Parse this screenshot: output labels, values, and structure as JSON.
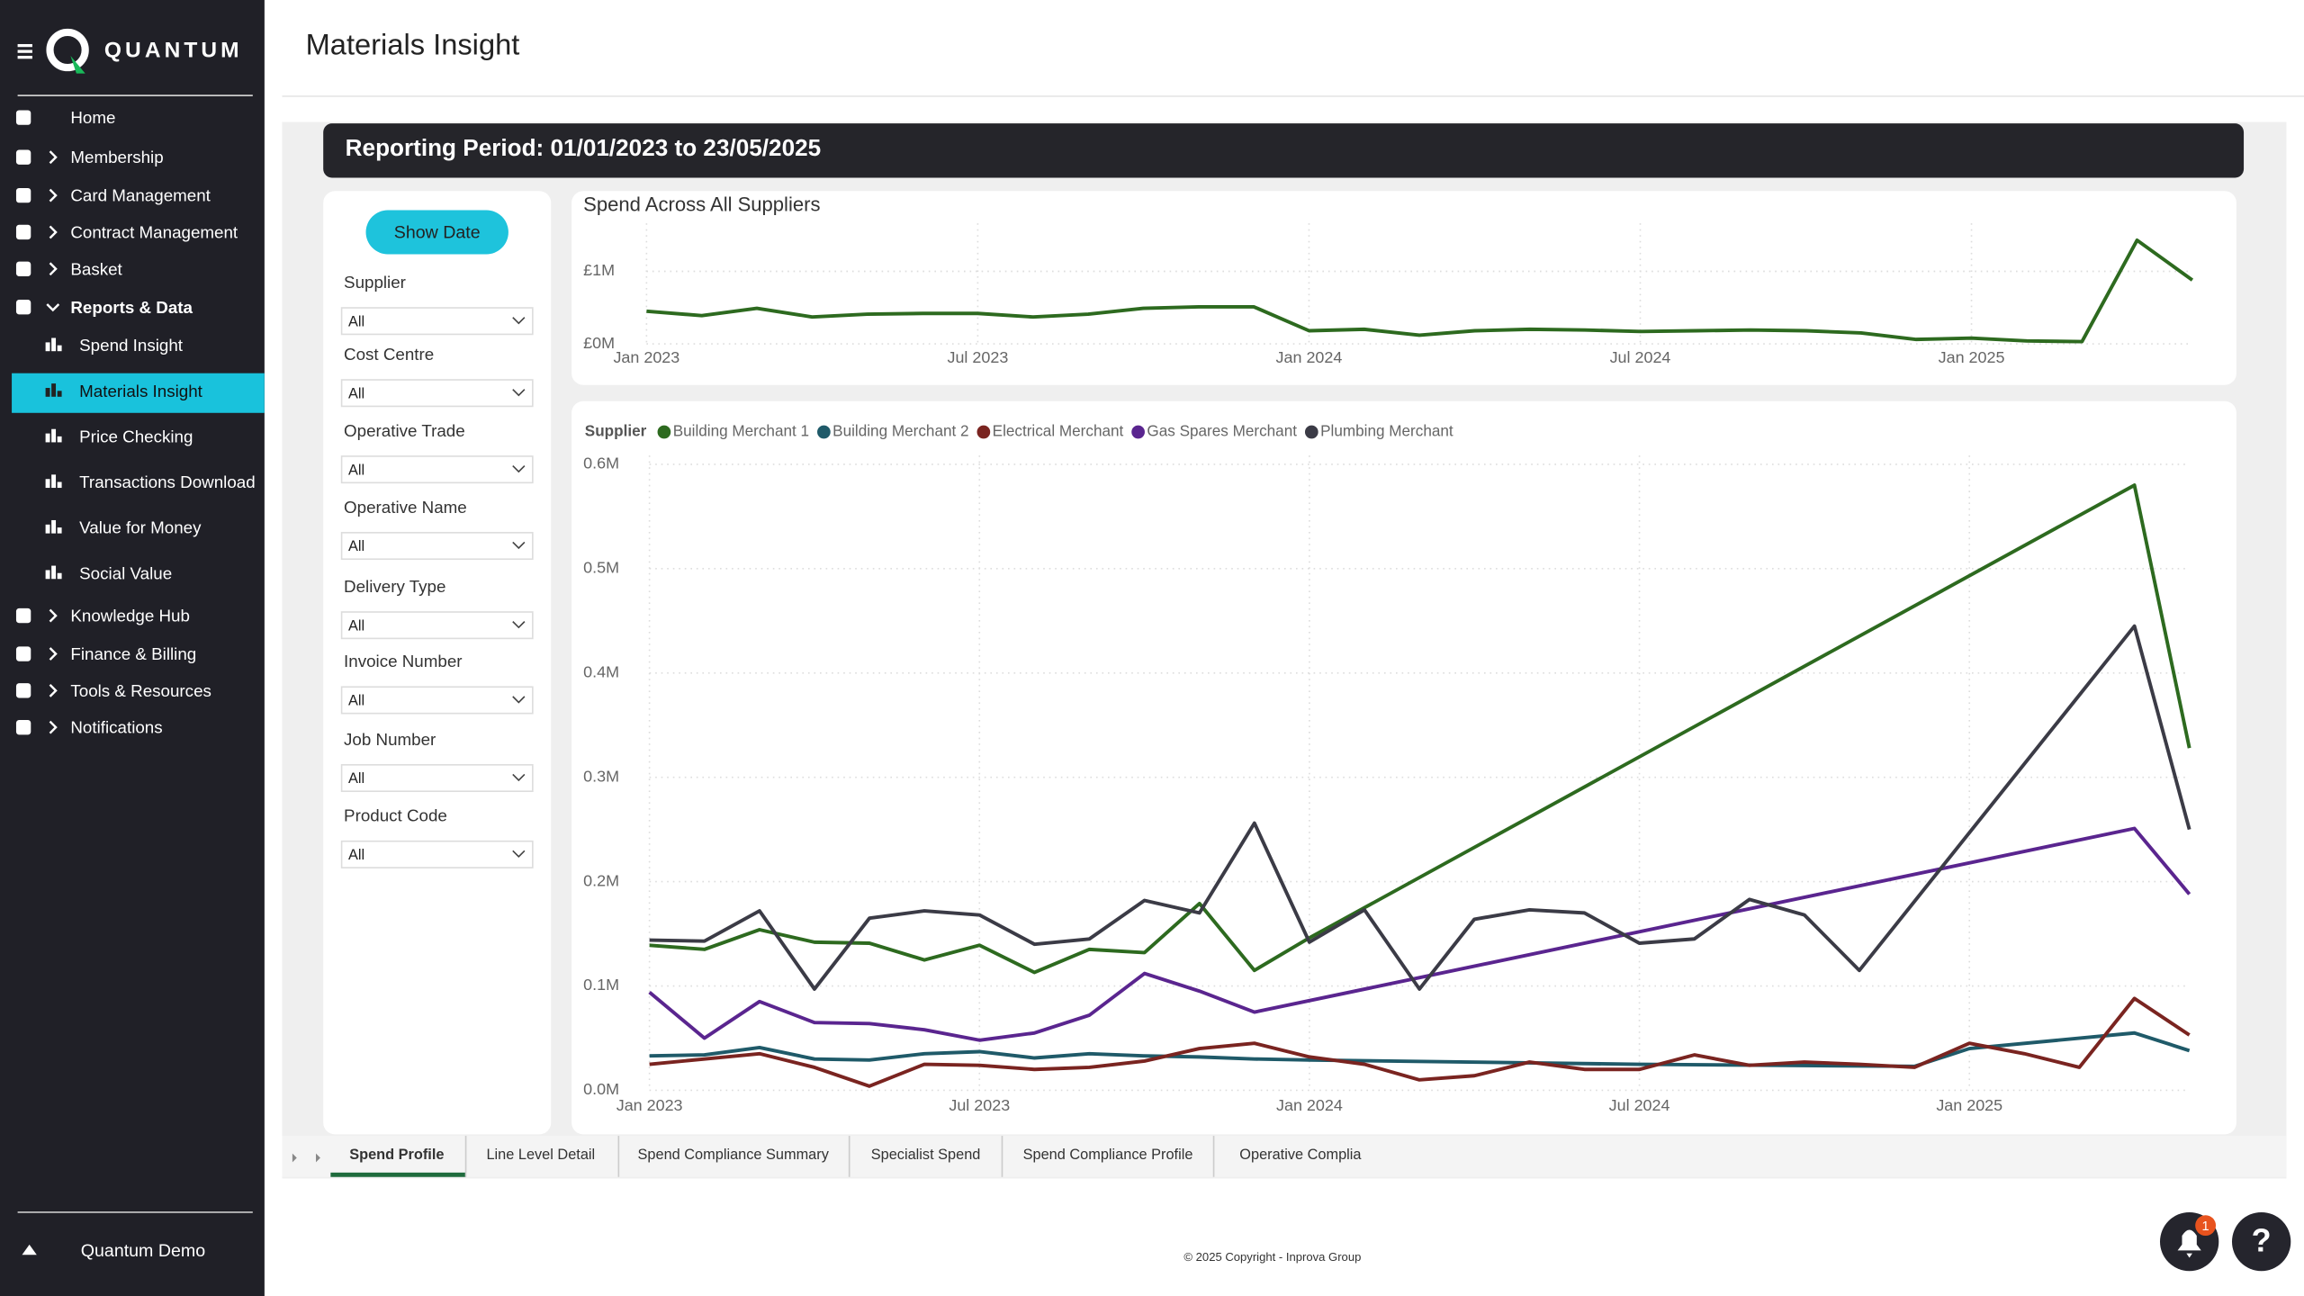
{
  "sidebar": {
    "logo": "QUANTUM",
    "nav": [
      "Home",
      "Membership",
      "Card Management",
      "Contract Management",
      "Basket",
      "Reports & Data",
      "Spend Insight",
      "Materials Insight",
      "Price Checking",
      "Transactions Download",
      "Value for Money",
      "Social Value",
      "Knowledge Hub",
      "Finance & Billing",
      "Tools & Resources",
      "Notifications"
    ],
    "user": "Quantum Demo"
  },
  "header": {
    "title": "Materials Insight"
  },
  "report": {
    "period": "Reporting Period: 01/01/2023 to 23/05/2025",
    "button": "Show Date",
    "filters": [
      {
        "label": "Supplier",
        "value": "All"
      },
      {
        "label": "Cost Centre",
        "value": "All"
      },
      {
        "label": "Operative Trade",
        "value": "All"
      },
      {
        "label": "Operative Name",
        "value": "All"
      },
      {
        "label": "Delivery Type",
        "value": "All"
      },
      {
        "label": "Invoice Number",
        "value": "All"
      },
      {
        "label": "Job Number",
        "value": "All"
      },
      {
        "label": "Product Code",
        "value": "All"
      }
    ],
    "tabs": [
      "Spend Profile",
      "Line Level Detail",
      "Spend Compliance Summary",
      "Specialist Spend",
      "Spend Compliance Profile",
      "Operative Complia"
    ]
  },
  "footer": {
    "copyright": "© 2025 Copyright - Inprova Group",
    "notification_count": 1,
    "help": "?"
  },
  "chart_data": [
    {
      "type": "line",
      "title": "Spend Across All Suppliers",
      "color": "#2d6a1f",
      "grid": true,
      "x": [
        "Jan 2023",
        "Feb 2023",
        "Mar 2023",
        "Apr 2023",
        "May 2023",
        "Jun 2023",
        "Jul 2023",
        "Aug 2023",
        "Sep 2023",
        "Oct 2023",
        "Nov 2023",
        "Dec 2023",
        "Jan 2024",
        "Feb 2024",
        "Mar 2024",
        "Apr 2024",
        "May 2024",
        "Jun 2024",
        "Jul 2024",
        "Aug 2024",
        "Sep 2024",
        "Oct 2024",
        "Nov 2024",
        "Dec 2024",
        "Jan 2025",
        "Feb 2025",
        "Mar 2025",
        "Apr 2025",
        "May 2025"
      ],
      "values": [
        450000,
        390000,
        490000,
        370000,
        410000,
        420000,
        420000,
        370000,
        410000,
        490000,
        510000,
        510000,
        180000,
        200000,
        120000,
        180000,
        200000,
        190000,
        170000,
        180000,
        190000,
        180000,
        150000,
        60000,
        80000,
        40000,
        30000,
        1430000,
        880000
      ],
      "xlim": [
        "Jan 2023",
        "May 2025"
      ],
      "xticks": [
        "Jan 2023",
        "Jul 2023",
        "Jan 2024",
        "Jul 2024",
        "Jan 2025"
      ],
      "ylim": [
        0,
        1500000
      ],
      "yticks": [
        {
          "value": 0,
          "label": "£0M"
        },
        {
          "value": 1000000,
          "label": "£1M"
        }
      ]
    },
    {
      "type": "line",
      "legend_title": "Supplier",
      "grid": true,
      "series": [
        {
          "name": "Building Merchant 1",
          "color": "#2d6a1f",
          "x": [
            "Jan 2023",
            "Feb 2023",
            "Mar 2023",
            "Apr 2023",
            "May 2023",
            "Jun 2023",
            "Jul 2023",
            "Aug 2023",
            "Sep 2023",
            "Oct 2023",
            "Nov 2023",
            "Dec 2023",
            "Jan 2024",
            "Apr 2025",
            "May 2025"
          ],
          "values": [
            139000,
            135000,
            154000,
            142000,
            141000,
            125000,
            139000,
            113000,
            135000,
            132000,
            179000,
            115000,
            146000,
            580000,
            328000
          ]
        },
        {
          "name": "Building Merchant 2",
          "color": "#1f5a69",
          "x": [
            "Jan 2023",
            "Feb 2023",
            "Mar 2023",
            "Apr 2023",
            "May 2023",
            "Jun 2023",
            "Jul 2023",
            "Aug 2023",
            "Sep 2023",
            "Oct 2023",
            "Nov 2023",
            "Dec 2023",
            "Jan 2024",
            "Jul 2024",
            "Dec 2024",
            "Jan 2025",
            "Apr 2025",
            "May 2025"
          ],
          "values": [
            33000,
            34000,
            41000,
            30000,
            29000,
            35000,
            37000,
            31000,
            35000,
            33000,
            32000,
            30000,
            29000,
            25000,
            23000,
            40000,
            55000,
            38000
          ]
        },
        {
          "name": "Electrical Merchant",
          "color": "#7a2420",
          "x": [
            "Jan 2023",
            "Feb 2023",
            "Mar 2023",
            "Apr 2023",
            "May 2023",
            "Jun 2023",
            "Jul 2023",
            "Aug 2023",
            "Sep 2023",
            "Oct 2023",
            "Nov 2023",
            "Dec 2023",
            "Jan 2024",
            "Feb 2024",
            "Mar 2024",
            "Apr 2024",
            "May 2024",
            "Jun 2024",
            "Jul 2024",
            "Aug 2024",
            "Sep 2024",
            "Oct 2024",
            "Nov 2024",
            "Dec 2024",
            "Jan 2025",
            "Feb 2025",
            "Mar 2025",
            "Apr 2025",
            "May 2025"
          ],
          "values": [
            25000,
            30000,
            35000,
            22000,
            4000,
            25000,
            24000,
            20000,
            22000,
            28000,
            40000,
            45000,
            32000,
            25000,
            10000,
            14000,
            27000,
            20000,
            20000,
            34000,
            24000,
            27000,
            25000,
            22000,
            45000,
            35000,
            22000,
            88000,
            53000
          ]
        },
        {
          "name": "Gas Spares Merchant",
          "color": "#5a258f",
          "x": [
            "Jan 2023",
            "Feb 2023",
            "Mar 2023",
            "Apr 2023",
            "May 2023",
            "Jun 2023",
            "Jul 2023",
            "Aug 2023",
            "Sep 2023",
            "Oct 2023",
            "Nov 2023",
            "Dec 2023",
            "Apr 2025",
            "May 2025"
          ],
          "values": [
            94000,
            50000,
            85000,
            65000,
            64000,
            58000,
            48000,
            55000,
            72000,
            112000,
            95000,
            75000,
            251000,
            188000
          ]
        },
        {
          "name": "Plumbing Merchant",
          "color": "#3b3b46",
          "x": [
            "Jan 2023",
            "Feb 2023",
            "Mar 2023",
            "Apr 2023",
            "May 2023",
            "Jun 2023",
            "Jul 2023",
            "Aug 2023",
            "Sep 2023",
            "Oct 2023",
            "Nov 2023",
            "Dec 2023",
            "Jan 2024",
            "Feb 2024",
            "Mar 2024",
            "Apr 2024",
            "May 2024",
            "Jun 2024",
            "Jul 2024",
            "Aug 2024",
            "Sep 2024",
            "Oct 2024",
            "Nov 2024",
            "Apr 2025",
            "May 2025"
          ],
          "values": [
            144000,
            143000,
            172000,
            97000,
            165000,
            172000,
            168000,
            140000,
            145000,
            182000,
            170000,
            256000,
            142000,
            173000,
            97000,
            164000,
            173000,
            170000,
            141000,
            145000,
            183000,
            168000,
            115000,
            445000,
            250000
          ]
        }
      ],
      "xlim": [
        "Jan 2023",
        "May 2025"
      ],
      "xticks": [
        "Jan 2023",
        "Jul 2023",
        "Jan 2024",
        "Jul 2024",
        "Jan 2025"
      ],
      "ylim": [
        0,
        600000
      ],
      "yticks": [
        {
          "value": 0,
          "label": "0.0M"
        },
        {
          "value": 100000,
          "label": "0.1M"
        },
        {
          "value": 200000,
          "label": "0.2M"
        },
        {
          "value": 300000,
          "label": "0.3M"
        },
        {
          "value": 400000,
          "label": "0.4M"
        },
        {
          "value": 500000,
          "label": "0.5M"
        },
        {
          "value": 600000,
          "label": "0.6M"
        }
      ]
    }
  ]
}
